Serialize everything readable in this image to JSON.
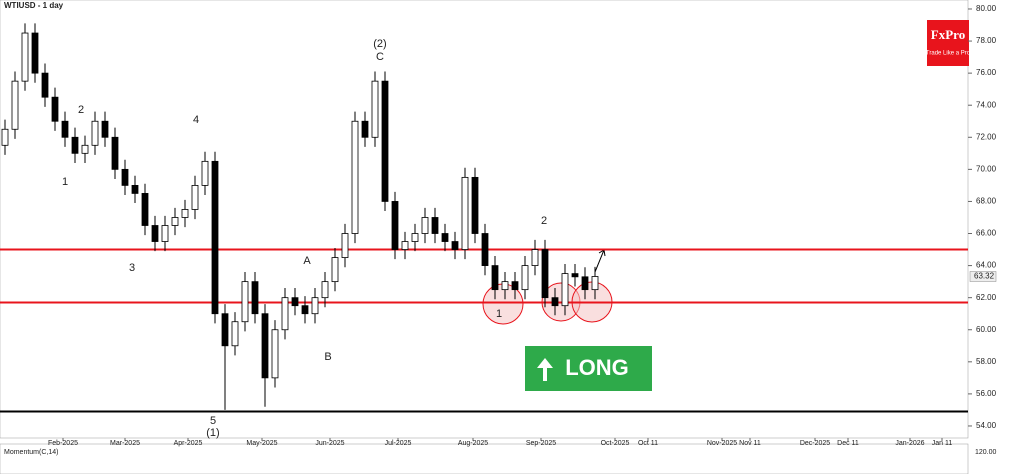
{
  "chart_data": {
    "type": "candlestick",
    "title": "WTIUSD - 1 day",
    "logo": "FxPro",
    "logo_tagline": "Trade Like a Pro",
    "signal": "LONG",
    "indicator": "Momentum(C,14)",
    "indicator_tick": {
      "value": 120,
      "label": "120.00"
    },
    "up_color": "#ffffff",
    "down_color": "#000000",
    "grid": false,
    "open": [
      71.5,
      72.5,
      75.5,
      78.5,
      76,
      74.5,
      73,
      72,
      71,
      71.5,
      73,
      72,
      70,
      69,
      68.5,
      66.5,
      65.5,
      66.5,
      67,
      67.5,
      69,
      70.5,
      61,
      59,
      60.5,
      63,
      61,
      57,
      60,
      62,
      61.5,
      61,
      62,
      63,
      64.5,
      66,
      73,
      72,
      75.5,
      68,
      65,
      65.5,
      66,
      67,
      66,
      65.5,
      65,
      69.5,
      66,
      64,
      62.5,
      63,
      62.5,
      64,
      65,
      62,
      61.5,
      63.5,
      63.3,
      62.5
    ],
    "high": [
      73.1,
      76.1,
      79.1,
      79.1,
      76.6,
      75.1,
      73.6,
      72.6,
      72.1,
      73.6,
      73.6,
      72.6,
      70.6,
      69.6,
      69.1,
      67.1,
      67.1,
      67.6,
      68.1,
      69.6,
      71.1,
      71.1,
      61.6,
      61.1,
      63.6,
      63.6,
      61.6,
      60.6,
      62.6,
      62.6,
      62.1,
      62.6,
      63.6,
      65.1,
      66.6,
      73.6,
      73.6,
      76.1,
      76.1,
      68.6,
      66.1,
      66.6,
      67.6,
      67.6,
      66.6,
      66.1,
      70.1,
      70.1,
      66.6,
      64.6,
      63.6,
      63.6,
      64.6,
      65.6,
      65.6,
      62.6,
      64.1,
      64.1,
      63.9,
      63.92
    ],
    "low": [
      70.9,
      71.9,
      74.9,
      75.4,
      73.9,
      72.4,
      71.4,
      70.4,
      70.4,
      70.9,
      71.4,
      69.4,
      68.4,
      67.9,
      65.9,
      64.9,
      64.9,
      65.9,
      66.4,
      66.9,
      68.4,
      60.4,
      55,
      58.4,
      59.9,
      60.4,
      55.2,
      56.4,
      59.4,
      60.9,
      60.4,
      60.4,
      61.4,
      62.4,
      63.9,
      65.4,
      71.4,
      71.4,
      67.4,
      64.4,
      64.4,
      64.9,
      65.4,
      65.4,
      64.9,
      64.4,
      64.4,
      65.4,
      63.4,
      61.9,
      61.9,
      61.9,
      61.9,
      63.4,
      61.4,
      60.9,
      60.9,
      62.7,
      61.9,
      61.9
    ],
    "close": [
      72.5,
      75.5,
      78.5,
      76,
      74.5,
      73,
      72,
      71,
      71.5,
      73,
      72,
      70,
      69,
      68.5,
      66.5,
      65.5,
      66.5,
      67,
      67.5,
      69,
      70.5,
      61,
      59,
      60.5,
      63,
      61,
      57,
      60,
      62,
      61.5,
      61,
      62,
      63,
      64.5,
      66,
      73,
      72,
      75.5,
      68,
      65,
      65.5,
      66,
      67,
      66,
      65.5,
      65,
      69.5,
      66,
      64,
      62.5,
      63,
      62.5,
      64,
      65,
      62,
      61.5,
      63.5,
      63.3,
      62.5,
      63.32
    ],
    "last_price": {
      "value": 63.32,
      "label": "63.32"
    },
    "levels": [
      {
        "value": 65,
        "color": "#e8141c"
      },
      {
        "value": 61.7,
        "color": "#e8141c"
      },
      {
        "value": 54.9,
        "color": "#000000"
      }
    ],
    "ylim": [
      53.25,
      80.56
    ],
    "yticks": [
      {
        "value": 54,
        "label": "54.00"
      },
      {
        "value": 56,
        "label": "56.00"
      },
      {
        "value": 58,
        "label": "58.00"
      },
      {
        "value": 60,
        "label": "60.00"
      },
      {
        "value": 62,
        "label": "62.00"
      },
      {
        "value": 64,
        "label": "64.00"
      },
      {
        "value": 66,
        "label": "66.00"
      },
      {
        "value": 68,
        "label": "68.00"
      },
      {
        "value": 70,
        "label": "70.00"
      },
      {
        "value": 72,
        "label": "72.00"
      },
      {
        "value": 74,
        "label": "74.00"
      },
      {
        "value": 76,
        "label": "76.00"
      },
      {
        "value": 78,
        "label": "78.00"
      },
      {
        "value": 80,
        "label": "80.00"
      }
    ],
    "xticks": [
      "Feb-2025",
      "Mar-2025",
      "Apr-2025",
      "May-2025",
      "Jun-2025",
      "Jul-2025",
      "Aug-2025",
      "Sep-2025",
      "Oct-2025",
      "Oct 11",
      "Nov-2025",
      "Nov 11",
      "Dec-2025",
      "Dec 11",
      "Jan-2026",
      "Jan 11"
    ],
    "annotations": [
      "(2)",
      "C",
      "2",
      "4",
      "1",
      "3",
      "5",
      "(1)",
      "A",
      "B",
      "2",
      "1"
    ]
  }
}
